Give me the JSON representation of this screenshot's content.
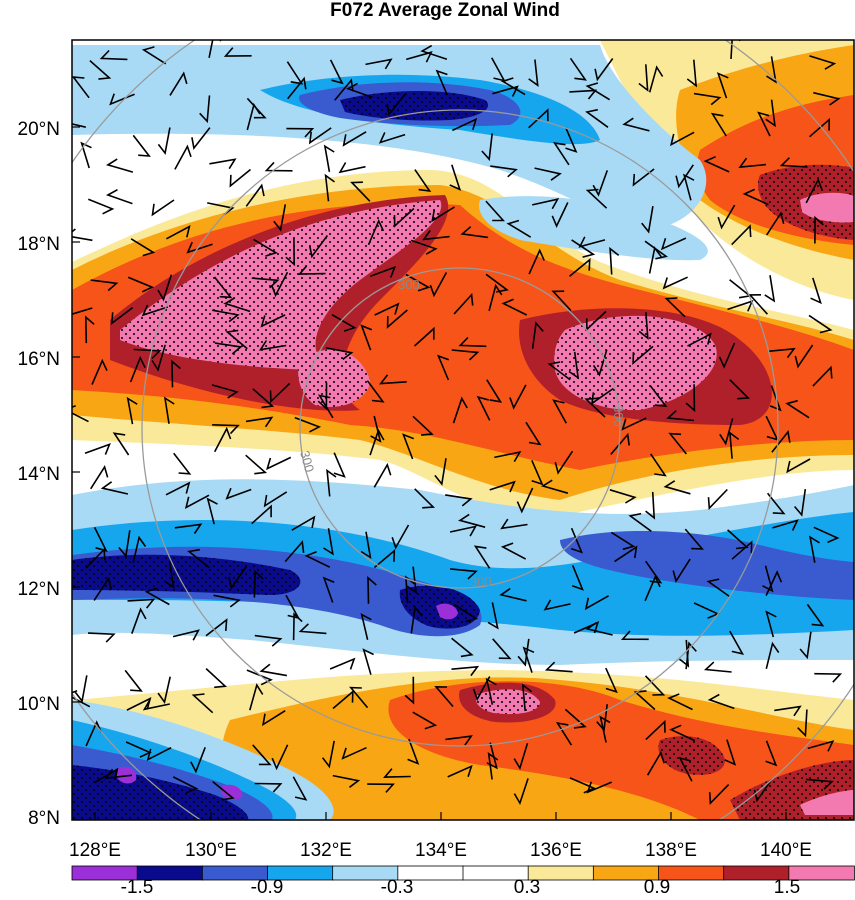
{
  "title": "F072 Average Zonal Wind",
  "lon_ticks": [
    "128°E",
    "130°E",
    "132°E",
    "134°E",
    "136°E",
    "138°E",
    "140°E"
  ],
  "lat_ticks": [
    "8°N",
    "10°N",
    "12°N",
    "14°N",
    "16°N",
    "18°N",
    "20°N"
  ],
  "ring_label": "300",
  "colorbar": {
    "colors": [
      "#9b30d8",
      "#0a0a8c",
      "#3a5ad0",
      "#16a6ee",
      "#a8daf6",
      "#ffffff",
      "#ffffff",
      "#fbe99a",
      "#f9a614",
      "#f65418",
      "#b0202a",
      "#f27ab0"
    ],
    "labels": [
      "-1.5",
      "-0.9",
      "-0.3",
      "0.3",
      "0.9",
      "1.5"
    ]
  },
  "colors": {
    "ring": "#9a9a9a",
    "barb": "#000000",
    "frame": "#000000"
  }
}
